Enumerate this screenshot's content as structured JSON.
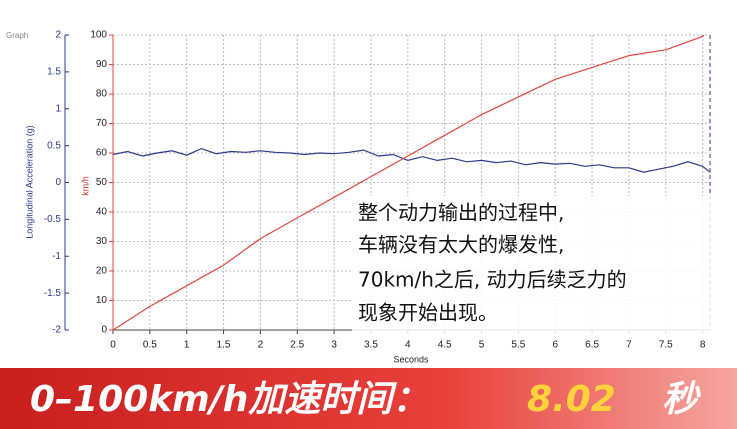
{
  "chart_data": {
    "type": "line",
    "title": "Graph",
    "xlabel": "Seconds",
    "ylabel": "Longitudinal Acceleration (g)",
    "y2label": "km/h",
    "xlim": [
      0,
      8.1
    ],
    "xticks": [
      0,
      0.5,
      1,
      1.5,
      2,
      2.5,
      3,
      3.5,
      4,
      4.5,
      5,
      5.5,
      6,
      6.5,
      7,
      7.5,
      8
    ],
    "ylim": [
      -2,
      2
    ],
    "yticks": [
      2,
      1.5,
      1,
      0.5,
      0,
      -0.5,
      -1,
      -1.5,
      -2
    ],
    "y2lim": [
      0,
      100
    ],
    "y2ticks": [
      0,
      10,
      20,
      30,
      40,
      50,
      60,
      70,
      80,
      90,
      100
    ],
    "grid": true,
    "series": [
      {
        "color": "#2b3a8c",
        "axis": "y",
        "x": [
          0,
          0.2,
          0.4,
          0.6,
          0.8,
          1,
          1.2,
          1.4,
          1.6,
          1.8,
          2,
          2.2,
          2.4,
          2.6,
          2.8,
          3,
          3.2,
          3.4,
          3.6,
          3.8,
          4,
          4.2,
          4.4,
          4.6,
          4.8,
          5,
          5.2,
          5.4,
          5.6,
          5.8,
          6,
          6.2,
          6.4,
          6.6,
          6.8,
          7,
          7.2,
          7.4,
          7.6,
          7.8,
          8,
          8.1
        ],
        "values": [
          0.38,
          0.42,
          0.36,
          0.4,
          0.43,
          0.37,
          0.46,
          0.39,
          0.42,
          0.41,
          0.43,
          0.41,
          0.4,
          0.38,
          0.4,
          0.39,
          0.41,
          0.44,
          0.36,
          0.38,
          0.3,
          0.35,
          0.3,
          0.33,
          0.28,
          0.3,
          0.27,
          0.29,
          0.24,
          0.27,
          0.25,
          0.26,
          0.22,
          0.24,
          0.2,
          0.2,
          0.14,
          0.18,
          0.22,
          0.28,
          0.22,
          0.14
        ]
      },
      {
        "color": "#e0463e",
        "axis": "y2",
        "x": [
          0,
          0.5,
          1,
          1.5,
          2,
          2.5,
          3,
          3.5,
          4,
          4.5,
          5,
          5.5,
          6,
          6.5,
          7,
          7.5,
          8,
          8.02
        ],
        "values": [
          0,
          8,
          15,
          22,
          31,
          38,
          45,
          52,
          59,
          66,
          73,
          79,
          85,
          89,
          93,
          95,
          99.5,
          100
        ]
      }
    ],
    "annotation": [
      "整个动力输出的过程中,",
      "车辆没有太大的爆发性,",
      "70km/h之后, 动力后续乏力的",
      "现象开始出现。"
    ]
  },
  "banner": {
    "label": "0–100km/h加速时间：",
    "value": "8.02",
    "unit": "秒"
  }
}
